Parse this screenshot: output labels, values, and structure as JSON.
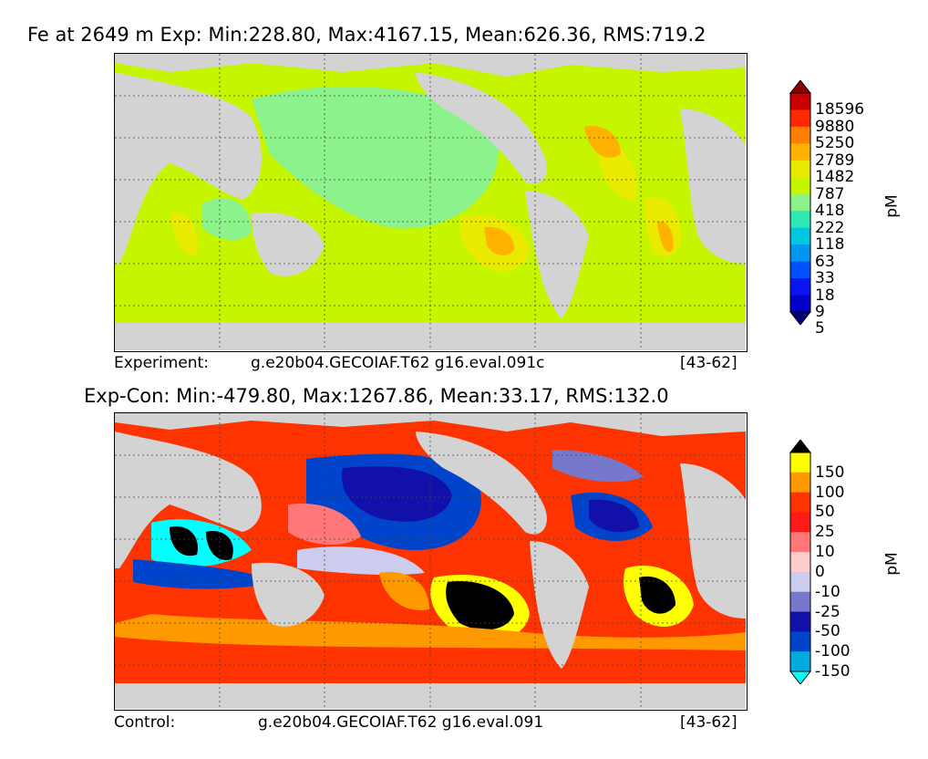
{
  "chart_data": [
    {
      "type": "heatmap",
      "title": "Fe at 2649 m Exp: Min:228.80, Max:4167.15, Mean:626.36, RMS:719.2",
      "footer": {
        "left": "Experiment:",
        "middle": "g.e20b04.GECOIAF.T62 g16.eval.091c",
        "right": "[43-62]"
      },
      "colorbar": {
        "unit": "pM",
        "levels": [
          "18596",
          "9880",
          "5250",
          "2789",
          "1482",
          "787",
          "418",
          "222",
          "118",
          "63",
          "33",
          "18",
          "9",
          "5"
        ],
        "colors": [
          "#8b0000",
          "#cc0000",
          "#ff2a00",
          "#ff7f00",
          "#ffb300",
          "#eaea00",
          "#c6f500",
          "#8cf28c",
          "#2de8b4",
          "#00c8dc",
          "#0096f0",
          "#0050ff",
          "#0a14f0",
          "#0000c8",
          "#00007a"
        ]
      }
    },
    {
      "type": "heatmap",
      "title": "Exp-Con: Min:-479.80, Max:1267.86, Mean:33.17, RMS:132.0",
      "footer": {
        "left": "Control:",
        "middle": "g.e20b04.GECOIAF.T62 g16.eval.091",
        "right": "[43-62]"
      },
      "colorbar": {
        "unit": "pM",
        "levels": [
          "150",
          "100",
          "50",
          "25",
          "10",
          "0",
          "-10",
          "-25",
          "-50",
          "-100",
          "-150"
        ],
        "colors": [
          "#000000",
          "#ffff00",
          "#ff9900",
          "#ff3300",
          "#ff1a1a",
          "#ff7777",
          "#ffcccc",
          "#ccccee",
          "#7777cc",
          "#1111aa",
          "#0044cc",
          "#00aadd",
          "#00ffff"
        ]
      }
    }
  ]
}
